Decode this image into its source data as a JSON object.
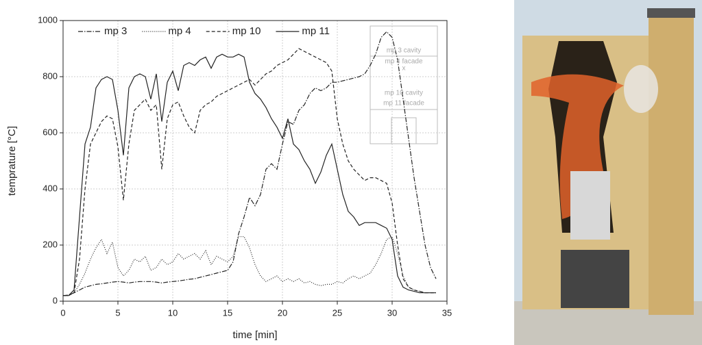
{
  "chart_data": {
    "type": "line",
    "xlabel": "time [min]",
    "ylabel": "temprature [°C]",
    "x": [
      0,
      0.5,
      1,
      1.5,
      2,
      2.5,
      3,
      3.5,
      4,
      4.5,
      5,
      5.5,
      6,
      6.5,
      7,
      7.5,
      8,
      8.5,
      9,
      9.5,
      10,
      10.5,
      11,
      11.5,
      12,
      12.5,
      13,
      13.5,
      14,
      14.5,
      15,
      15.5,
      16,
      16.5,
      17,
      17.5,
      18,
      18.5,
      19,
      19.5,
      20,
      20.5,
      21,
      21.5,
      22,
      22.5,
      23,
      23.5,
      24,
      24.5,
      25,
      25.5,
      26,
      26.5,
      27,
      27.5,
      28,
      28.5,
      29,
      29.5,
      30,
      30.5,
      31,
      31.5,
      32,
      32.5,
      33,
      33.5,
      34
    ],
    "series": [
      {
        "name": "mp 3",
        "color": "#222222",
        "dash": "dashdot",
        "values": [
          20,
          22,
          30,
          40,
          50,
          55,
          60,
          62,
          65,
          68,
          70,
          68,
          65,
          68,
          70,
          70,
          70,
          68,
          65,
          68,
          70,
          72,
          75,
          78,
          80,
          85,
          90,
          95,
          100,
          105,
          110,
          140,
          240,
          300,
          370,
          340,
          380,
          470,
          490,
          470,
          560,
          640,
          630,
          680,
          700,
          740,
          760,
          750,
          760,
          780,
          780,
          785,
          790,
          795,
          800,
          810,
          840,
          880,
          940,
          960,
          940,
          860,
          720,
          580,
          440,
          320,
          200,
          120,
          80
        ]
      },
      {
        "name": "mp 4",
        "color": "#222222",
        "dash": "dotted",
        "values": [
          20,
          20,
          30,
          60,
          100,
          150,
          190,
          220,
          170,
          210,
          120,
          90,
          110,
          150,
          140,
          160,
          110,
          120,
          150,
          130,
          140,
          170,
          150,
          160,
          170,
          150,
          180,
          130,
          160,
          150,
          140,
          160,
          230,
          230,
          190,
          130,
          90,
          70,
          80,
          90,
          70,
          80,
          70,
          80,
          65,
          70,
          60,
          55,
          60,
          60,
          70,
          65,
          80,
          90,
          80,
          90,
          100,
          130,
          170,
          220,
          230,
          170,
          90,
          50,
          40,
          35,
          30,
          30,
          30
        ]
      },
      {
        "name": "mp 10",
        "color": "#222222",
        "dash": "dashed",
        "values": [
          20,
          20,
          30,
          150,
          400,
          560,
          600,
          640,
          660,
          650,
          550,
          360,
          560,
          680,
          700,
          720,
          680,
          700,
          470,
          650,
          700,
          710,
          660,
          620,
          600,
          680,
          700,
          710,
          730,
          740,
          750,
          760,
          770,
          780,
          790,
          770,
          790,
          810,
          820,
          840,
          850,
          860,
          880,
          900,
          890,
          880,
          870,
          860,
          850,
          820,
          650,
          560,
          500,
          470,
          450,
          430,
          440,
          440,
          430,
          420,
          350,
          200,
          80,
          50,
          40,
          35,
          30,
          30,
          30
        ]
      },
      {
        "name": "mp 11",
        "color": "#222222",
        "dash": "solid",
        "values": [
          20,
          20,
          40,
          300,
          560,
          620,
          760,
          790,
          800,
          790,
          680,
          520,
          760,
          800,
          810,
          800,
          720,
          810,
          640,
          780,
          820,
          750,
          840,
          850,
          840,
          860,
          870,
          830,
          870,
          880,
          870,
          870,
          880,
          870,
          780,
          740,
          720,
          690,
          650,
          620,
          580,
          650,
          560,
          540,
          500,
          470,
          420,
          460,
          520,
          560,
          470,
          380,
          320,
          300,
          270,
          280,
          280,
          280,
          270,
          260,
          220,
          90,
          50,
          40,
          35,
          30,
          30,
          30,
          30
        ]
      }
    ],
    "xlim": [
      0,
      35
    ],
    "xticks": [
      0,
      5,
      10,
      15,
      20,
      25,
      30,
      35
    ],
    "ylim": [
      0,
      1000
    ],
    "yticks": [
      0,
      200,
      400,
      600,
      800,
      1000
    ],
    "grid": true,
    "legend": "top",
    "annotations": [
      "mp 3 cavity",
      "mp 4 facade",
      "x",
      "mp 10 cavity",
      "mp 11 facade"
    ]
  }
}
